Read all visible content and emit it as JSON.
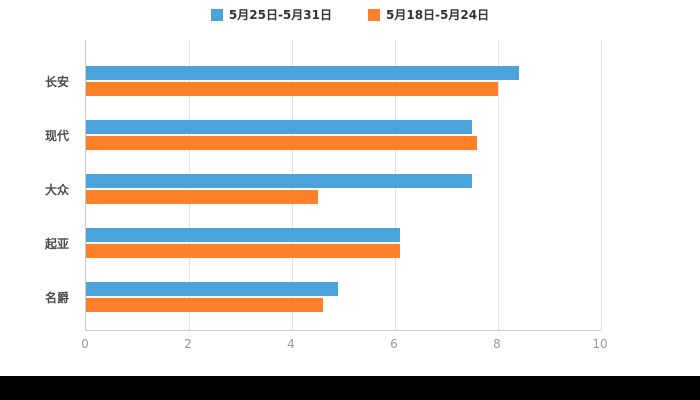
{
  "legend": {
    "items": [
      {
        "label": "5月25日-5月31日",
        "color": "#4BA3DB"
      },
      {
        "label": "5月18日-5月24日",
        "color": "#FF7F2A"
      }
    ]
  },
  "chart_data": {
    "type": "bar",
    "orientation": "horizontal",
    "title": "",
    "categories": [
      "长安",
      "现代",
      "大众",
      "起亚",
      "名爵"
    ],
    "series": [
      {
        "name": "5月25日-5月31日",
        "color": "#4BA3DB",
        "values": [
          8.4,
          7.5,
          7.5,
          6.1,
          4.9
        ]
      },
      {
        "name": "5月18日-5月24日",
        "color": "#FF7F2A",
        "values": [
          8.0,
          7.6,
          4.5,
          6.1,
          4.6
        ]
      }
    ],
    "xlim": [
      0,
      10
    ],
    "x_ticks": [
      0,
      2,
      4,
      6,
      8,
      10
    ],
    "x_tick_labels": [
      "0",
      "2",
      "4",
      "6",
      "8",
      "10"
    ],
    "grid": true,
    "legend_position": "top",
    "colors": {
      "gridline": "#e3e3e3",
      "axis_line": "#cccccc",
      "tick_text": "#999999",
      "category_text": "#4d4d4d",
      "bottom_strip": "#000000"
    }
  }
}
